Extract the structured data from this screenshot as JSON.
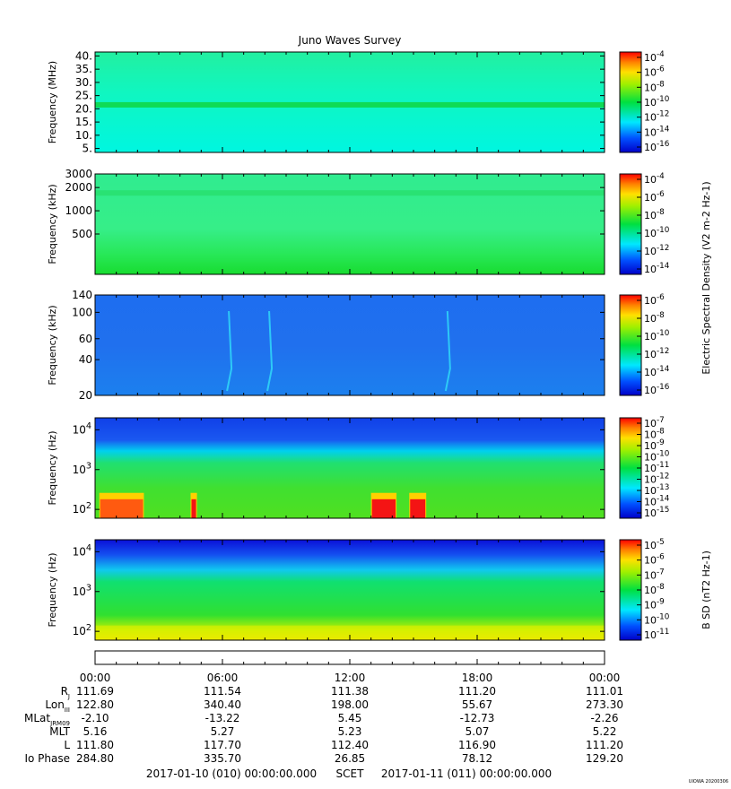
{
  "title": "Juno Waves Survey",
  "footer_stamp": "UIOWA 20200306",
  "chart_data": [
    {
      "type": "heatmap",
      "panel": 1,
      "ylabel": "Frequency (MHz)",
      "yticks": [
        "5.",
        "10.",
        "15.",
        "20.",
        "25.",
        "30.",
        "35.",
        "40."
      ],
      "yscale": "linear",
      "ylim": [
        3.5,
        41.5
      ],
      "colorbar_ticks": [
        "10-4",
        "10-6",
        "10-8",
        "10-10",
        "10-12",
        "10-14",
        "10-16"
      ],
      "colorbar_exponents": [
        -4,
        -6,
        -8,
        -10,
        -12,
        -14,
        -16
      ],
      "features": [
        {
          "kind": "band",
          "freq": 21.5,
          "level_exp": -11
        }
      ],
      "background_level_exp": -12.5
    },
    {
      "type": "heatmap",
      "panel": 2,
      "ylabel": "Frequency (kHz)",
      "yticks": [
        "500",
        "1000",
        "2000",
        "3000"
      ],
      "yscale": "log",
      "ylim": [
        150,
        3000
      ],
      "colorbar_ticks": [
        "10-4",
        "10-6",
        "10-8",
        "10-10",
        "10-12",
        "10-14"
      ],
      "colorbar_exponents": [
        -4,
        -6,
        -8,
        -10,
        -12,
        -14
      ],
      "colorbar_label": "Electric Spectral Density (V2 m-2 Hz-1)",
      "features": [
        {
          "kind": "band",
          "freq": 1700,
          "level_exp": -10
        }
      ],
      "background_level_exp": -11
    },
    {
      "type": "heatmap",
      "panel": 3,
      "ylabel": "Frequency (kHz)",
      "yticks": [
        "20",
        "40",
        "60",
        "100",
        "140"
      ],
      "yscale": "log",
      "ylim": [
        20,
        140
      ],
      "colorbar_ticks": [
        "10-6",
        "10-8",
        "10-10",
        "10-12",
        "10-14",
        "10-16"
      ],
      "colorbar_exponents": [
        -6,
        -8,
        -10,
        -12,
        -14,
        -16
      ],
      "features": [
        {
          "kind": "spike",
          "time_h": 6.3,
          "level_exp": -12.5
        },
        {
          "kind": "spike",
          "time_h": 8.2,
          "level_exp": -12
        },
        {
          "kind": "spike",
          "time_h": 16.6,
          "level_exp": -12.5
        }
      ],
      "background_level_exp": -14
    },
    {
      "type": "heatmap",
      "panel": 4,
      "ylabel": "Frequency (Hz)",
      "yticks": [
        "10^2",
        "10^3",
        "10^4"
      ],
      "yscale": "log",
      "ylim": [
        60,
        20000
      ],
      "colorbar_ticks": [
        "10-7",
        "10-8",
        "10-9",
        "10-10",
        "10-11",
        "10-12",
        "10-13",
        "10-14",
        "10-15"
      ],
      "colorbar_exponents": [
        -7,
        -8,
        -9,
        -10,
        -11,
        -12,
        -13,
        -14,
        -15
      ],
      "features": [
        {
          "kind": "burst",
          "time_start_h": 0.2,
          "time_end_h": 2.3,
          "level_exp": -8
        },
        {
          "kind": "burst",
          "time_start_h": 4.5,
          "time_end_h": 4.8,
          "level_exp": -7
        },
        {
          "kind": "burst",
          "time_start_h": 13.0,
          "time_end_h": 14.2,
          "level_exp": -7
        },
        {
          "kind": "burst",
          "time_start_h": 14.8,
          "time_end_h": 15.6,
          "level_exp": -7
        }
      ],
      "background_level_exp": -11
    },
    {
      "type": "heatmap",
      "panel": 5,
      "ylabel": "Frequency (Hz)",
      "yticks": [
        "10^2",
        "10^3",
        "10^4"
      ],
      "yscale": "log",
      "ylim": [
        60,
        20000
      ],
      "colorbar_ticks": [
        "10-5",
        "10-6",
        "10-7",
        "10-8",
        "10-9",
        "10-10",
        "10-11"
      ],
      "colorbar_exponents": [
        -5,
        -6,
        -7,
        -8,
        -9,
        -10,
        -11
      ],
      "colorbar_label": "B SD (nT2 Hz-1)",
      "features": [
        {
          "kind": "low-freq-noise",
          "level_exp": -7.5
        }
      ],
      "background_level_exp": -8.5
    }
  ],
  "xaxis": {
    "ticks": [
      "00:00",
      "06:00",
      "12:00",
      "18:00",
      "00:00"
    ],
    "rows": [
      {
        "label": "R",
        "sub": "J",
        "values": [
          "111.69",
          "111.54",
          "111.38",
          "111.20",
          "111.01"
        ]
      },
      {
        "label": "Lon",
        "sub": "III",
        "values": [
          "122.80",
          "340.40",
          "198.00",
          "55.67",
          "273.30"
        ]
      },
      {
        "label": "MLat",
        "sub": "JRM09",
        "values": [
          "-2.10",
          "-13.22",
          "5.45",
          "-12.73",
          "-2.26"
        ]
      },
      {
        "label": "MLT",
        "sub": "",
        "values": [
          "5.16",
          "5.27",
          "5.23",
          "5.07",
          "5.22"
        ]
      },
      {
        "label": "L",
        "sub": "",
        "values": [
          "111.80",
          "117.70",
          "112.40",
          "116.90",
          "111.20"
        ]
      },
      {
        "label": "Io Phase",
        "sub": "",
        "values": [
          "284.80",
          "335.70",
          "26.85",
          "78.12",
          "129.20"
        ]
      }
    ],
    "range_start": "2017-01-10 (010) 00:00:00.000",
    "range_mid": "SCET",
    "range_end": "2017-01-11 (011) 00:00:00.000"
  }
}
